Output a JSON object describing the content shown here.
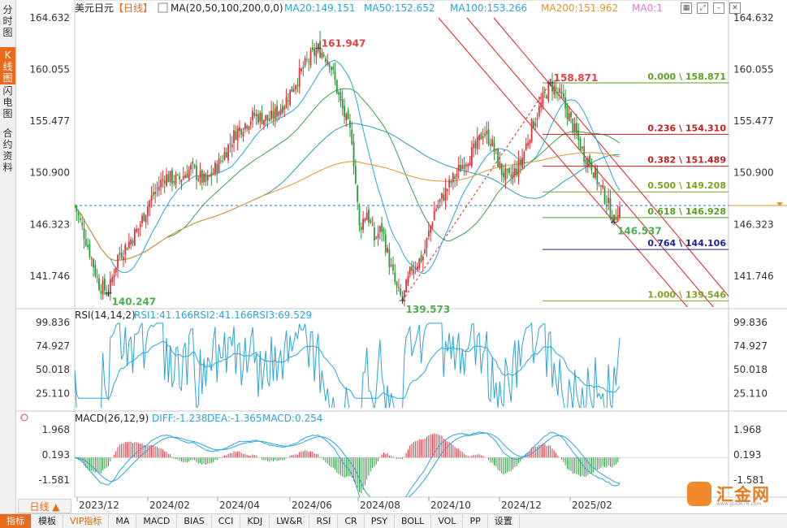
{
  "left_tabs": [
    {
      "label": "分时图",
      "active": false
    },
    {
      "label": "K线图",
      "active": true
    },
    {
      "label": "闪电图",
      "active": false
    },
    {
      "label": "合约资料",
      "active": false
    }
  ],
  "top_icons": [
    "grid-icon",
    "expand-icon",
    "minimize-icon",
    "close-icon"
  ],
  "legend": {
    "symbol": "美元日元",
    "period": "【日线】",
    "ma_label": "MA(20,50,100,200,0,0)",
    "ma_items": [
      {
        "text": "MA20:149.151",
        "color": "#2aa5d8"
      },
      {
        "text": "MA50:152.652",
        "color": "#2aa5d8"
      },
      {
        "text": "MA100:153.266",
        "color": "#2aa5d8"
      },
      {
        "text": "MA200:151.962",
        "color": "#e8922a"
      },
      {
        "text": "MA0:1",
        "color": "#e07ad0"
      }
    ],
    "rsi_label": "RSI(14,14,2)",
    "rsi_items": [
      {
        "text": "RSI1:41.166",
        "color": "#2aa5d8"
      },
      {
        "text": "RSI2:41.166",
        "color": "#2aa5d8"
      },
      {
        "text": "RSI3:69.529",
        "color": "#2aa5d8"
      }
    ],
    "macd_label": "MACD(26,12,9)",
    "macd_items": [
      {
        "text": "DIFF:-1.238",
        "color": "#2aa5d8"
      },
      {
        "text": "DEA:-1.365",
        "color": "#2aa5d8"
      },
      {
        "text": "MACD:0.254",
        "color": "#2aa5d8"
      }
    ]
  },
  "chart_data": [
    {
      "type": "candlestick",
      "title": "美元日元 日线",
      "y_ticks": [
        "164.632",
        "160.055",
        "155.477",
        "150.900",
        "146.323",
        "141.746"
      ],
      "ylim": [
        139.0,
        165.5
      ],
      "x_ticks": [
        "2023/12",
        "2024/02",
        "2024/04",
        "2024/06",
        "2024/08",
        "2024/10",
        "2024/12",
        "2025/02"
      ],
      "price_anchors": [
        {
          "i": 0,
          "p": 148.0
        },
        {
          "i": 6,
          "p": 145.0
        },
        {
          "i": 13,
          "p": 141.0
        },
        {
          "i": 18,
          "p": 140.247
        },
        {
          "i": 23,
          "p": 143.5
        },
        {
          "i": 28,
          "p": 144.5
        },
        {
          "i": 34,
          "p": 146.0
        },
        {
          "i": 40,
          "p": 148.4
        },
        {
          "i": 48,
          "p": 150.6
        },
        {
          "i": 55,
          "p": 150.2
        },
        {
          "i": 62,
          "p": 151.3
        },
        {
          "i": 70,
          "p": 150.0
        },
        {
          "i": 78,
          "p": 152.0
        },
        {
          "i": 86,
          "p": 154.5
        },
        {
          "i": 96,
          "p": 156.0
        },
        {
          "i": 104,
          "p": 155.6
        },
        {
          "i": 112,
          "p": 157.1
        },
        {
          "i": 118,
          "p": 159.0
        },
        {
          "i": 124,
          "p": 160.7
        },
        {
          "i": 130,
          "p": 161.947
        },
        {
          "i": 136,
          "p": 160.9
        },
        {
          "i": 142,
          "p": 157.0
        },
        {
          "i": 148,
          "p": 154.0
        },
        {
          "i": 152,
          "p": 146.0
        },
        {
          "i": 156,
          "p": 147.5
        },
        {
          "i": 160,
          "p": 145.0
        },
        {
          "i": 164,
          "p": 146.0
        },
        {
          "i": 168,
          "p": 143.0
        },
        {
          "i": 172,
          "p": 140.5
        },
        {
          "i": 175,
          "p": 139.573
        },
        {
          "i": 180,
          "p": 142.5
        },
        {
          "i": 186,
          "p": 143.5
        },
        {
          "i": 192,
          "p": 147.5
        },
        {
          "i": 200,
          "p": 149.8
        },
        {
          "i": 208,
          "p": 151.9
        },
        {
          "i": 214,
          "p": 153.0
        },
        {
          "i": 218,
          "p": 154.6
        },
        {
          "i": 222,
          "p": 153.8
        },
        {
          "i": 228,
          "p": 151.0
        },
        {
          "i": 232,
          "p": 150.3
        },
        {
          "i": 238,
          "p": 151.7
        },
        {
          "i": 244,
          "p": 155.0
        },
        {
          "i": 250,
          "p": 157.3
        },
        {
          "i": 254,
          "p": 158.871
        },
        {
          "i": 260,
          "p": 157.5
        },
        {
          "i": 266,
          "p": 155.0
        },
        {
          "i": 272,
          "p": 152.5
        },
        {
          "i": 276,
          "p": 151.6
        },
        {
          "i": 280,
          "p": 149.8
        },
        {
          "i": 284,
          "p": 148.5
        },
        {
          "i": 288,
          "p": 146.537
        },
        {
          "i": 290,
          "p": 147.8
        }
      ],
      "annotations": [
        {
          "label": "161.947",
          "price": 161.947,
          "i": 130,
          "color": "#e04040"
        },
        {
          "label": "140.247",
          "price": 140.247,
          "i": 18,
          "color": "#4caf50"
        },
        {
          "label": "139.573",
          "price": 139.573,
          "i": 175,
          "color": "#4caf50"
        },
        {
          "label": "158.871",
          "price": 158.871,
          "i": 254,
          "color": "#e04040"
        },
        {
          "label": "146.537",
          "price": 146.537,
          "i": 288,
          "color": "#4caf50"
        }
      ],
      "fibonacci": [
        {
          "label": "0.000 \\ 158.871",
          "price": 158.871,
          "color": "#5aa020"
        },
        {
          "label": "0.236 \\ 154.310",
          "price": 154.31,
          "color": "#c02020"
        },
        {
          "label": "0.382 \\ 151.489",
          "price": 151.489,
          "color": "#c02020"
        },
        {
          "label": "0.500 \\ 149.208",
          "price": 149.208,
          "color": "#7fa020"
        },
        {
          "label": "0.618 \\ 146.928",
          "price": 146.928,
          "color": "#5aa020"
        },
        {
          "label": "0.764 \\ 144.106",
          "price": 144.106,
          "color": "#2020a0"
        },
        {
          "label": "1.000 \\ 139.546",
          "price": 139.546,
          "color": "#7fa020"
        }
      ],
      "current_price_line": 148.0,
      "ma_lines": [
        {
          "name": "MA20",
          "color": "#2aa5d8"
        },
        {
          "name": "MA50",
          "color": "#3aa04a"
        },
        {
          "name": "MA100",
          "color": "#2a9ab8"
        },
        {
          "name": "MA200",
          "color": "#e8922a"
        }
      ]
    },
    {
      "type": "line",
      "title": "RSI(14,14,2)",
      "y_ticks": [
        "99.836",
        "74.927",
        "50.018",
        "25.110"
      ],
      "ylim": [
        10,
        104
      ],
      "series": [
        {
          "name": "RSI1",
          "value": 41.166,
          "color": "#2aa5d8"
        },
        {
          "name": "RSI2",
          "value": 41.166,
          "color": "#2aa5d8"
        },
        {
          "name": "RSI3",
          "value": 69.529,
          "color": "#2aa5d8"
        }
      ]
    },
    {
      "type": "bar",
      "title": "MACD(26,12,9)",
      "y_ticks": [
        "1.968",
        "0.193",
        "-1.581"
      ],
      "ylim": [
        -2.8,
        2.6
      ],
      "series": [
        {
          "name": "DIFF",
          "value": -1.238,
          "color": "#2aa5d8"
        },
        {
          "name": "DEA",
          "value": -1.365,
          "color": "#2aa5d8"
        },
        {
          "name": "MACD",
          "value": 0.254,
          "color": "#e04040"
        }
      ]
    }
  ],
  "period_button": "日线 ▲",
  "bottom_tabs": [
    {
      "label": "指标",
      "active": true,
      "vip": false
    },
    {
      "label": "模板",
      "active": false,
      "vip": false
    },
    {
      "label": "VIP指标",
      "active": false,
      "vip": true
    },
    {
      "label": "MA",
      "active": false,
      "vip": false
    },
    {
      "label": "MACD",
      "active": false,
      "vip": false
    },
    {
      "label": "BIAS",
      "active": false,
      "vip": false
    },
    {
      "label": "CCI",
      "active": false,
      "vip": false
    },
    {
      "label": "KDJ",
      "active": false,
      "vip": false
    },
    {
      "label": "LW&R",
      "active": false,
      "vip": false
    },
    {
      "label": "RSI",
      "active": false,
      "vip": false
    },
    {
      "label": "CR",
      "active": false,
      "vip": false
    },
    {
      "label": "PSY",
      "active": false,
      "vip": false
    },
    {
      "label": "BOLL",
      "active": false,
      "vip": false
    },
    {
      "label": "VOL",
      "active": false,
      "vip": false
    },
    {
      "label": "PP",
      "active": false,
      "vip": false
    },
    {
      "label": "设置",
      "active": false,
      "vip": false
    }
  ],
  "logo": {
    "text": "汇金网",
    "sub": "www.gold678.com"
  }
}
